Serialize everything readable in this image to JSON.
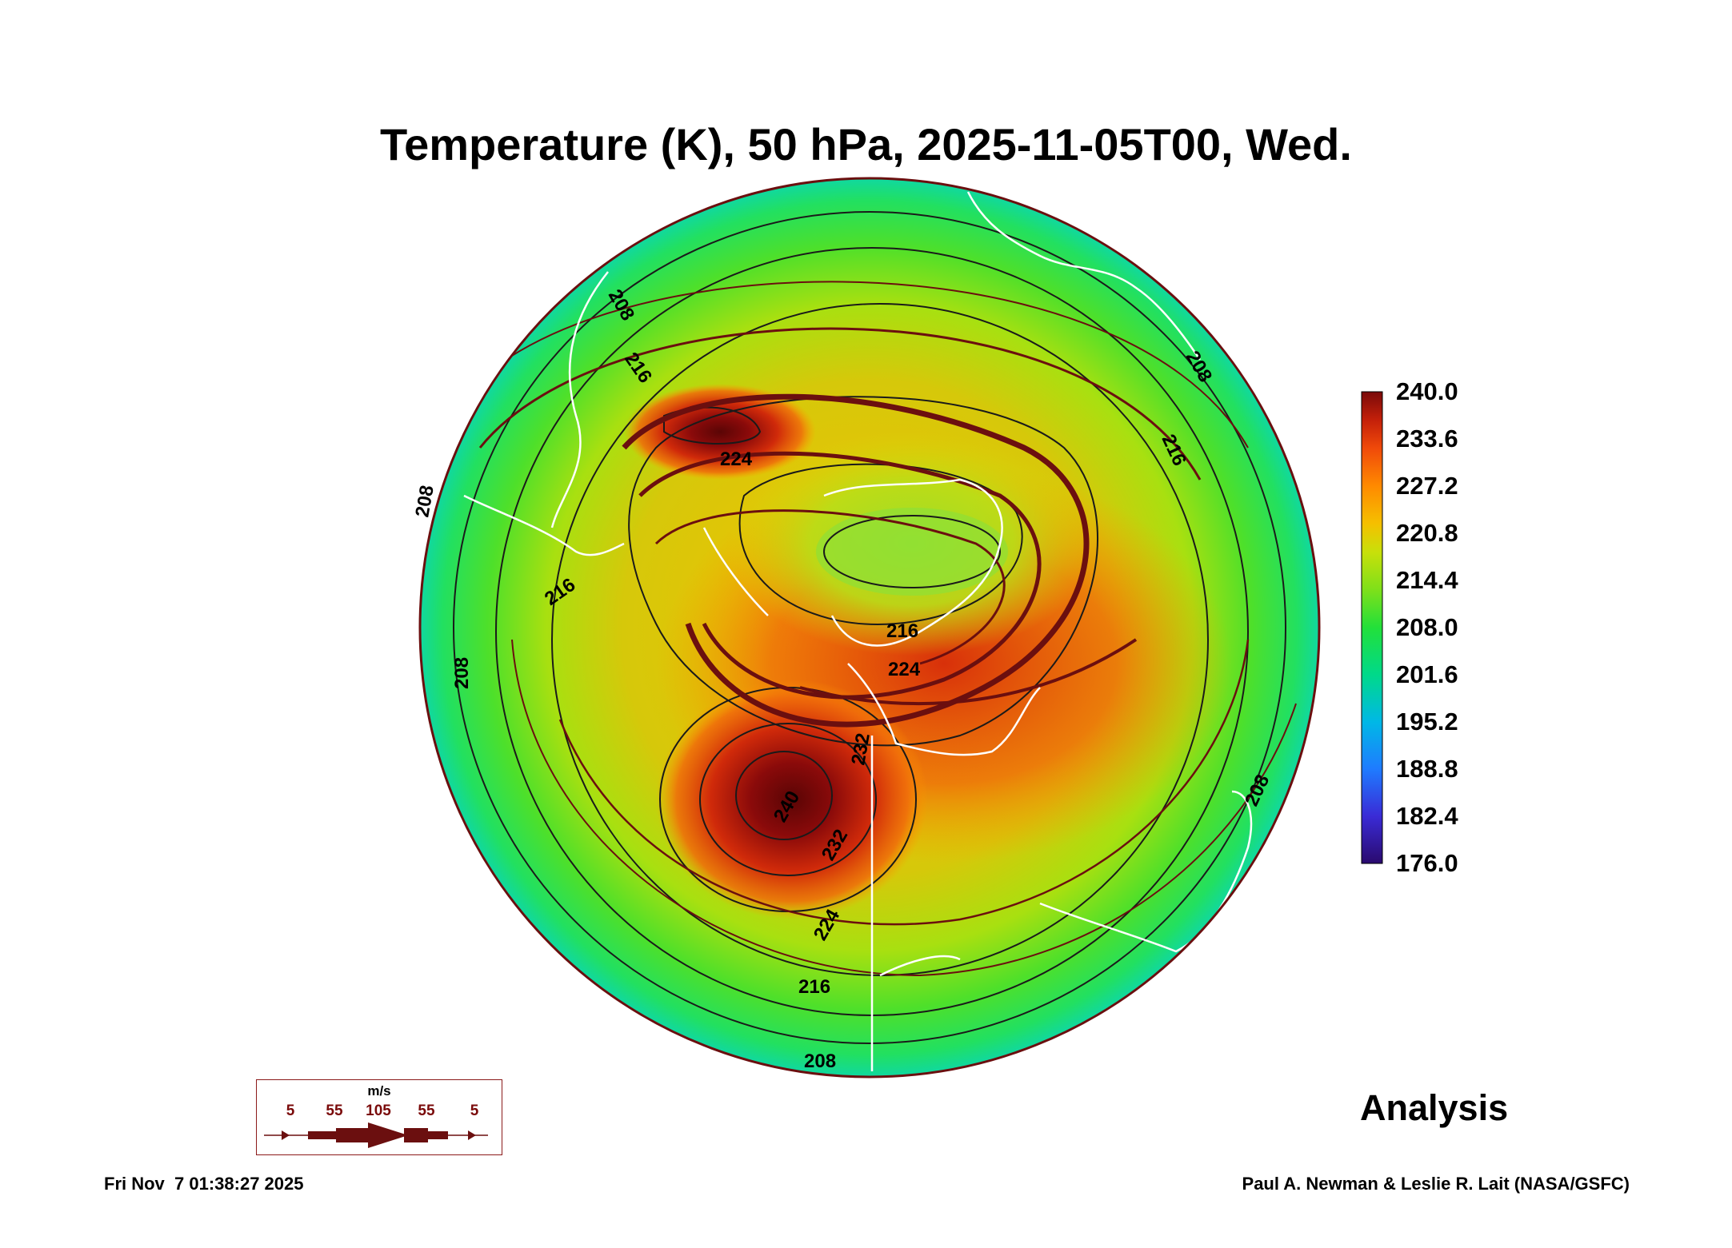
{
  "title": "Temperature (K), 50 hPa, 2025-11-05T00, Wed.",
  "colorbar": {
    "ticks": [
      "240.0",
      "233.6",
      "227.2",
      "220.8",
      "214.4",
      "208.0",
      "201.6",
      "195.2",
      "188.8",
      "182.4",
      "176.0"
    ],
    "range": [
      176.0,
      240.0
    ],
    "colors": [
      "#2a0a6e",
      "#3a2bd6",
      "#1f7bff",
      "#00b8e6",
      "#00d98a",
      "#22e03a",
      "#7ee01a",
      "#c8e00a",
      "#f5c000",
      "#ff8a00",
      "#f04a0a",
      "#c4200a",
      "#7a0a0a"
    ]
  },
  "contour_labels": [
    "208",
    "216",
    "208",
    "208",
    "216",
    "224",
    "216",
    "224",
    "232",
    "240",
    "232",
    "224",
    "216",
    "208",
    "216",
    "208",
    "208"
  ],
  "legend": {
    "unit": "m/s",
    "speeds": [
      "5",
      "55",
      "105",
      "55",
      "5"
    ]
  },
  "analysis_label": "Analysis",
  "footer": {
    "timestamp": "Fri Nov  7 01:38:27 2025",
    "credit": "Paul A. Newman & Leslie R. Lait (NASA/GSFC)"
  },
  "colors": {
    "streamline": "#6b0f0f",
    "coastline": "#ffffff",
    "contour": "#1a1a1a"
  }
}
